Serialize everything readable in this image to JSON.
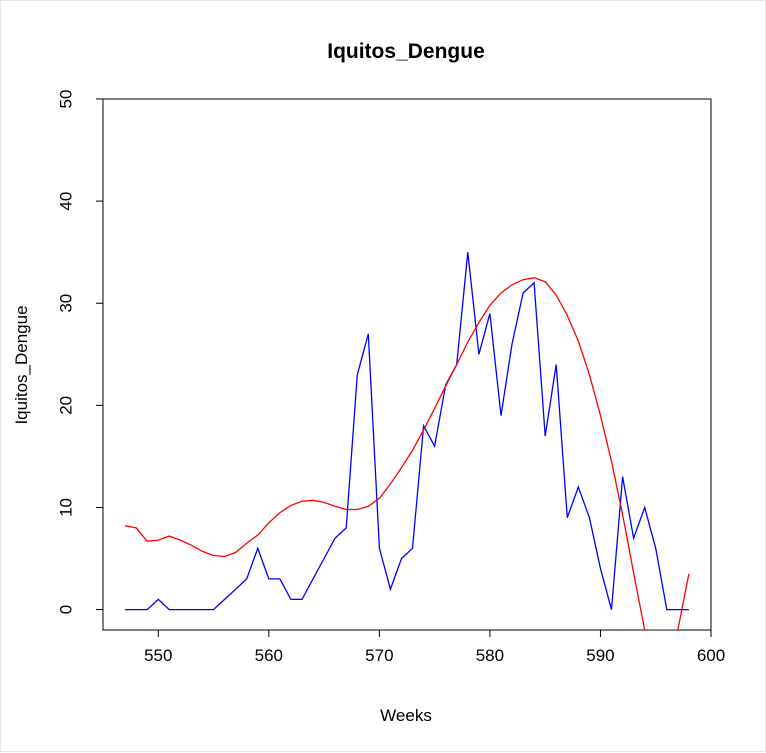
{
  "chart_data": {
    "type": "line",
    "title": "Iquitos_Dengue",
    "xlabel": "Weeks",
    "ylabel": "Iquitos_Dengue",
    "xlim": [
      545,
      600
    ],
    "ylim": [
      -2,
      50
    ],
    "x_ticks": [
      "550",
      "560",
      "570",
      "580",
      "590",
      "600"
    ],
    "y_ticks": [
      "0",
      "10",
      "20",
      "30",
      "40",
      "50"
    ],
    "grid": false,
    "legend": "none",
    "series": [
      {
        "color": "#0000ff",
        "x": [
          547,
          548,
          549,
          550,
          551,
          552,
          553,
          554,
          555,
          556,
          557,
          558,
          559,
          560,
          561,
          562,
          563,
          564,
          565,
          566,
          567,
          568,
          569,
          570,
          571,
          572,
          573,
          574,
          575,
          576,
          577,
          578,
          579,
          580,
          581,
          582,
          583,
          584,
          585,
          586,
          587,
          588,
          589,
          590,
          591,
          592,
          593,
          594,
          595,
          596,
          597,
          598
        ],
        "values": [
          0,
          0,
          0,
          1,
          0,
          0,
          0,
          0,
          0,
          1,
          2,
          3,
          6,
          3,
          3,
          1,
          1,
          3,
          5,
          7,
          8,
          23,
          27,
          6,
          2,
          5,
          6,
          18,
          16,
          22,
          24,
          35,
          25,
          29,
          19,
          26,
          31,
          32,
          17,
          24,
          9,
          12,
          9,
          4,
          0,
          13,
          7,
          10,
          6,
          0,
          0,
          0
        ]
      },
      {
        "color": "#ff0000",
        "x": [
          547,
          548,
          549,
          550,
          551,
          552,
          553,
          554,
          555,
          556,
          557,
          558,
          559,
          560,
          561,
          562,
          563,
          564,
          565,
          566,
          567,
          568,
          569,
          570,
          571,
          572,
          573,
          574,
          575,
          576,
          577,
          578,
          579,
          580,
          581,
          582,
          583,
          584,
          585,
          586,
          587,
          588,
          589,
          590,
          591,
          592,
          593,
          594,
          597,
          598
        ],
        "values": [
          8.2,
          8.0,
          6.7,
          6.8,
          7.2,
          6.8,
          6.3,
          5.7,
          5.3,
          5.2,
          5.6,
          6.5,
          7.3,
          8.5,
          9.5,
          10.2,
          10.6,
          10.7,
          10.5,
          10.1,
          9.8,
          9.8,
          10.1,
          10.9,
          12.3,
          13.9,
          15.6,
          17.6,
          19.7,
          21.9,
          24.0,
          26.2,
          28.1,
          29.8,
          31.0,
          31.8,
          32.3,
          32.5,
          32.1,
          30.8,
          28.8,
          26.3,
          23.0,
          19.0,
          14.5,
          9.3,
          3.6,
          -2.0,
          -2.0,
          3.5
        ]
      }
    ]
  }
}
